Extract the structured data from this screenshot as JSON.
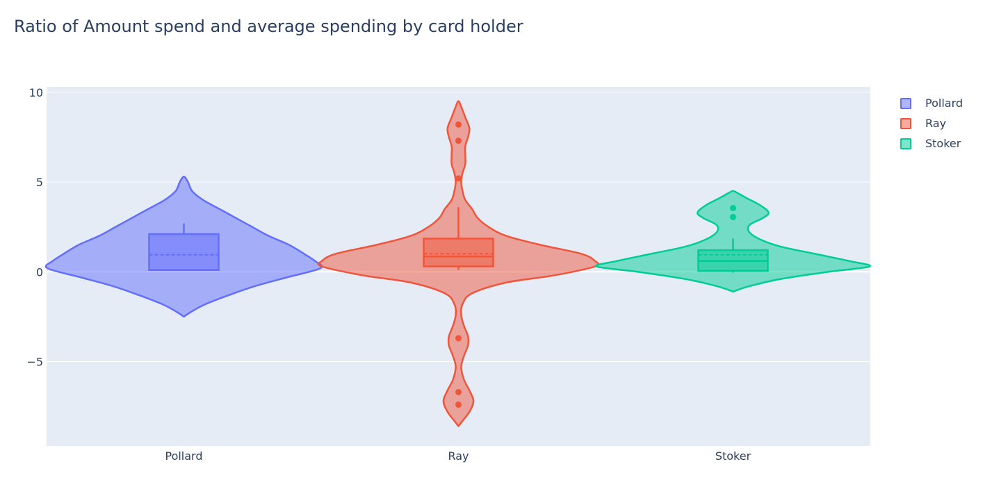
{
  "chart_data": {
    "type": "violin",
    "title": "Ratio of Amount spend and average spending by card holder",
    "xlabel": "",
    "ylabel": "",
    "ylim": [
      -9.7,
      10.3
    ],
    "yticks": [
      10,
      5,
      0,
      -5
    ],
    "ytick_labels": [
      "10",
      "5",
      "0",
      "−5"
    ],
    "grid": true,
    "legend_position": "top-right",
    "categories": [
      "Pollard",
      "Ray",
      "Stoker"
    ],
    "series": [
      {
        "name": "Pollard",
        "color": "#636efa",
        "box": {
          "min": 0.1,
          "q1": 0.1,
          "median": 0.1,
          "mean": 0.95,
          "q3": 2.1,
          "upper_whisker": 2.7
        },
        "outliers": [],
        "density": [
          [
            -2.5,
            0.0
          ],
          [
            -2.2,
            0.06
          ],
          [
            -1.8,
            0.16
          ],
          [
            -1.3,
            0.33
          ],
          [
            -0.8,
            0.52
          ],
          [
            -0.3,
            0.76
          ],
          [
            0.2,
            1.0
          ],
          [
            0.6,
            0.96
          ],
          [
            1.0,
            0.88
          ],
          [
            1.5,
            0.77
          ],
          [
            2.0,
            0.62
          ],
          [
            2.5,
            0.5
          ],
          [
            3.0,
            0.38
          ],
          [
            3.5,
            0.26
          ],
          [
            4.0,
            0.14
          ],
          [
            4.5,
            0.06
          ],
          [
            5.0,
            0.03
          ],
          [
            5.3,
            0.0
          ]
        ]
      },
      {
        "name": "Ray",
        "color": "#ef553b",
        "box": {
          "min": 0.1,
          "q1": 0.3,
          "median": 0.85,
          "mean": 1.0,
          "q3": 1.85,
          "upper_whisker": 3.6
        },
        "outliers": [
          8.2,
          7.3,
          5.2,
          -3.7,
          -6.7,
          -7.4
        ],
        "density": [
          [
            -8.6,
            0.0
          ],
          [
            -8.3,
            0.03
          ],
          [
            -7.8,
            0.08
          ],
          [
            -7.2,
            0.11
          ],
          [
            -6.6,
            0.08
          ],
          [
            -6.0,
            0.04
          ],
          [
            -5.3,
            0.02
          ],
          [
            -4.7,
            0.04
          ],
          [
            -4.1,
            0.07
          ],
          [
            -3.6,
            0.07
          ],
          [
            -3.0,
            0.04
          ],
          [
            -2.4,
            0.02
          ],
          [
            -1.8,
            0.03
          ],
          [
            -1.2,
            0.1
          ],
          [
            -0.6,
            0.35
          ],
          [
            -0.2,
            0.7
          ],
          [
            0.3,
            1.0
          ],
          [
            0.6,
            1.0
          ],
          [
            1.0,
            0.9
          ],
          [
            1.5,
            0.6
          ],
          [
            2.0,
            0.35
          ],
          [
            2.5,
            0.22
          ],
          [
            3.0,
            0.14
          ],
          [
            3.5,
            0.1
          ],
          [
            4.0,
            0.05
          ],
          [
            4.5,
            0.03
          ],
          [
            5.0,
            0.02
          ],
          [
            5.5,
            0.03
          ],
          [
            6.0,
            0.05
          ],
          [
            6.5,
            0.05
          ],
          [
            7.0,
            0.05
          ],
          [
            7.5,
            0.07
          ],
          [
            8.0,
            0.08
          ],
          [
            8.6,
            0.05
          ],
          [
            9.2,
            0.02
          ],
          [
            9.5,
            0.0
          ]
        ]
      },
      {
        "name": "Stoker",
        "color": "#00cc96",
        "box": {
          "min": -0.05,
          "q1": 0.05,
          "median": 0.6,
          "mean": 0.95,
          "q3": 1.2,
          "upper_whisker": 1.85
        },
        "outliers": [
          3.55,
          3.05
        ],
        "density": [
          [
            -1.1,
            0.0
          ],
          [
            -0.8,
            0.12
          ],
          [
            -0.4,
            0.35
          ],
          [
            0.0,
            0.7
          ],
          [
            0.3,
            1.0
          ],
          [
            0.6,
            0.85
          ],
          [
            1.0,
            0.6
          ],
          [
            1.4,
            0.35
          ],
          [
            1.8,
            0.2
          ],
          [
            2.2,
            0.12
          ],
          [
            2.6,
            0.12
          ],
          [
            3.0,
            0.22
          ],
          [
            3.3,
            0.26
          ],
          [
            3.7,
            0.2
          ],
          [
            4.1,
            0.1
          ],
          [
            4.4,
            0.03
          ],
          [
            4.5,
            0.0
          ]
        ]
      }
    ]
  }
}
